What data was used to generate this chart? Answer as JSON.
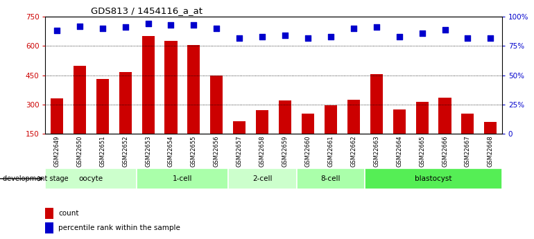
{
  "title": "GDS813 / 1454116_a_at",
  "samples": [
    "GSM22649",
    "GSM22650",
    "GSM22651",
    "GSM22652",
    "GSM22653",
    "GSM22654",
    "GSM22655",
    "GSM22656",
    "GSM22657",
    "GSM22658",
    "GSM22659",
    "GSM22660",
    "GSM22661",
    "GSM22662",
    "GSM22663",
    "GSM22664",
    "GSM22665",
    "GSM22666",
    "GSM22667",
    "GSM22668"
  ],
  "counts": [
    330,
    500,
    430,
    465,
    650,
    625,
    605,
    450,
    215,
    270,
    320,
    255,
    298,
    325,
    455,
    275,
    315,
    335,
    255,
    210
  ],
  "percentiles": [
    88,
    92,
    90,
    91,
    94,
    93,
    93,
    90,
    82,
    83,
    84,
    82,
    83,
    90,
    91,
    83,
    86,
    89,
    82,
    82
  ],
  "groups": [
    {
      "name": "oocyte",
      "start": 0,
      "end": 3,
      "color": "#ccffcc"
    },
    {
      "name": "1-cell",
      "start": 4,
      "end": 7,
      "color": "#aaffaa"
    },
    {
      "name": "2-cell",
      "start": 8,
      "end": 10,
      "color": "#ccffcc"
    },
    {
      "name": "8-cell",
      "start": 11,
      "end": 13,
      "color": "#aaffaa"
    },
    {
      "name": "blastocyst",
      "start": 14,
      "end": 19,
      "color": "#55ee55"
    }
  ],
  "bar_color": "#cc0000",
  "dot_color": "#0000cc",
  "ylim_left": [
    150,
    750
  ],
  "ylim_right": [
    0,
    100
  ],
  "yticks_left": [
    150,
    300,
    450,
    600,
    750
  ],
  "yticks_right": [
    0,
    25,
    50,
    75,
    100
  ],
  "legend_count_label": "count",
  "legend_pct_label": "percentile rank within the sample"
}
